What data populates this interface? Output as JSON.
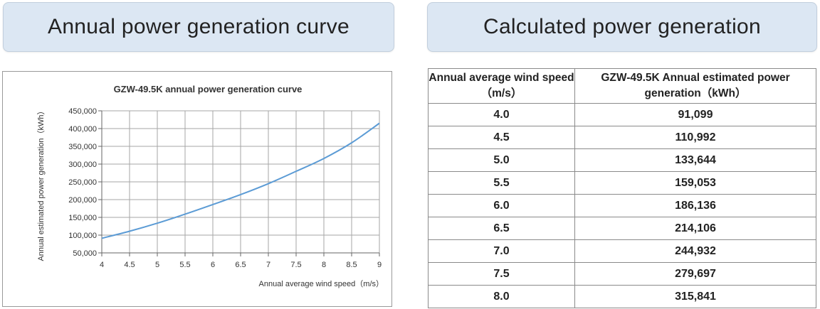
{
  "headers": {
    "left": "Annual power generation curve",
    "right": "Calculated power generation"
  },
  "table": {
    "columns": [
      "Annual average wind speed（m/s）",
      "GZW-49.5K Annual estimated power generation（kWh）"
    ],
    "rows": [
      [
        "4.0",
        "91,099"
      ],
      [
        "4.5",
        "110,992"
      ],
      [
        "5.0",
        "133,644"
      ],
      [
        "5.5",
        "159,053"
      ],
      [
        "6.0",
        "186,136"
      ],
      [
        "6.5",
        "214,106"
      ],
      [
        "7.0",
        "244,932"
      ],
      [
        "7.5",
        "279,697"
      ],
      [
        "8.0",
        "315,841"
      ]
    ]
  },
  "chart_data": {
    "type": "line",
    "title": "GZW-49.5K annual power generation curve",
    "xlabel": "Annual average wind speed（m/s）",
    "ylabel": "Annual estimated power generation（kWh）",
    "xlim": [
      4,
      9
    ],
    "ylim": [
      50000,
      450000
    ],
    "x_ticks": [
      "4",
      "4.5",
      "5",
      "5.5",
      "6",
      "6.5",
      "7",
      "7.5",
      "8",
      "8.5",
      "9"
    ],
    "y_ticks": [
      "50,000",
      "100,000",
      "150,000",
      "200,000",
      "250,000",
      "300,000",
      "350,000",
      "400,000",
      "450,000"
    ],
    "grid": true,
    "line_color": "#5b9bd5",
    "series": [
      {
        "x": [
          4.0,
          4.5,
          5.0,
          5.5,
          6.0,
          6.5,
          7.0,
          7.5,
          8.0,
          8.5,
          9.0
        ],
        "y": [
          91099,
          110992,
          133644,
          159053,
          186136,
          214106,
          244932,
          279697,
          315841,
          360000,
          415000
        ]
      }
    ]
  }
}
